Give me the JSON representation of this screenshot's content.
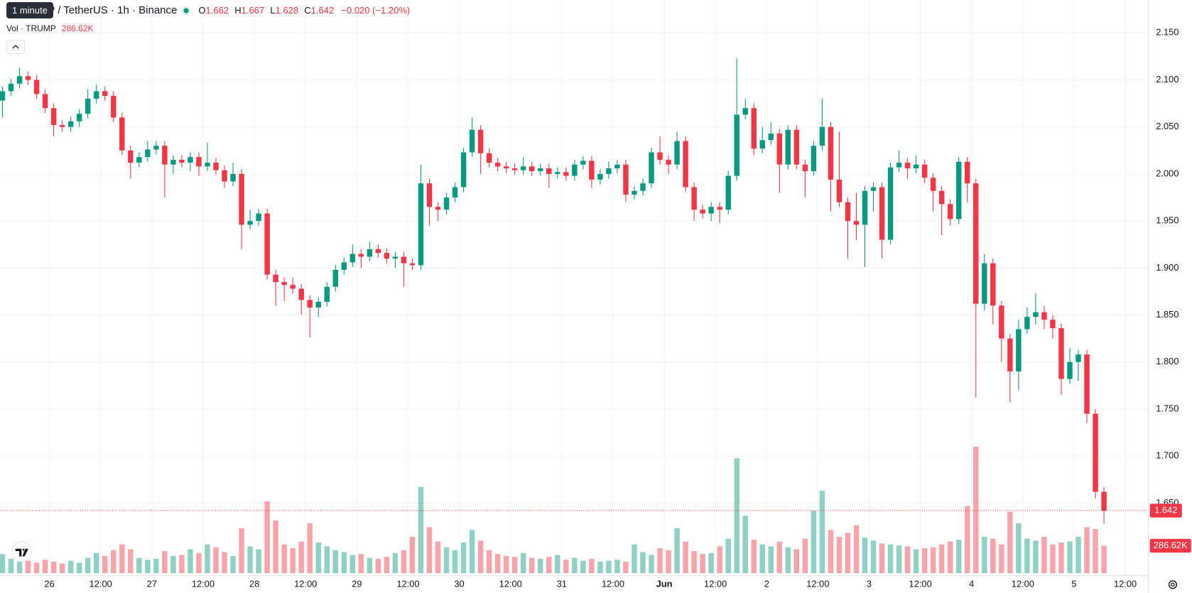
{
  "chart_data": {
    "type": "candlestick",
    "title": "TRUMP / TetherUS · 1h · Binance",
    "tooltip": "1 minute",
    "ohlc_keys": [
      "O",
      "H",
      "L",
      "C"
    ],
    "change": "−0.020 (−1.20%)",
    "volume_title": "Vol · TRUMP",
    "volume_label": "286.62K",
    "up_color": "#089981",
    "down_color": "#f23645",
    "grid": true,
    "open": [
      2.078,
      2.088,
      2.096,
      2.104,
      2.1,
      2.085,
      2.07,
      2.052,
      2.05,
      2.056,
      2.064,
      2.08,
      2.088,
      2.083,
      2.06,
      2.025,
      2.012,
      2.018,
      2.026,
      2.03,
      2.01,
      2.015,
      2.012,
      2.018,
      2.008,
      2.012,
      2.004,
      1.992,
      2.0,
      1.946,
      1.95,
      1.958,
      1.893,
      1.885,
      1.882,
      1.878,
      1.866,
      1.858,
      1.864,
      1.88,
      1.898,
      1.906,
      1.915,
      1.912,
      1.92,
      1.916,
      1.91,
      1.912,
      1.905,
      1.903,
      1.99,
      1.965,
      1.962,
      1.975,
      1.986,
      2.023,
      2.047,
      2.022,
      2.012,
      2.008,
      2.006,
      2.004,
      2.008,
      2.003,
      2.006,
      2.0,
      2.002,
      1.998,
      2.01,
      2.014,
      1.994,
      2.0,
      2.006,
      2.01,
      1.978,
      1.982,
      1.99,
      2.023,
      2.015,
      2.01,
      2.035,
      1.986,
      1.962,
      1.958,
      1.965,
      1.962,
      1.998,
      2.063,
      2.07,
      2.027,
      2.036,
      2.043,
      2.01,
      2.047,
      2.01,
      2.003,
      2.03,
      2.05,
      1.994,
      1.97,
      1.95,
      1.946,
      1.982,
      1.986,
      1.93,
      2.007,
      2.012,
      2.006,
      2.01,
      1.996,
      1.982,
      1.968,
      1.952,
      2.013,
      1.99,
      1.862,
      1.905,
      1.86,
      1.825,
      1.79,
      1.835,
      1.848,
      1.853,
      1.845,
      1.836,
      1.782,
      1.8,
      1.808,
      1.745,
      1.662
    ],
    "high": [
      2.093,
      2.101,
      2.113,
      2.109,
      2.105,
      2.09,
      2.075,
      2.057,
      2.061,
      2.069,
      2.09,
      2.095,
      2.093,
      2.088,
      2.065,
      2.03,
      2.023,
      2.035,
      2.035,
      2.035,
      2.02,
      2.02,
      2.023,
      2.023,
      2.033,
      2.017,
      2.009,
      2.012,
      2.005,
      1.962,
      1.963,
      1.963,
      1.898,
      1.89,
      1.89,
      1.883,
      1.871,
      1.869,
      1.885,
      1.903,
      1.911,
      1.925,
      1.92,
      1.928,
      1.925,
      1.921,
      1.917,
      1.917,
      1.91,
      2.01,
      1.995,
      1.97,
      1.98,
      1.991,
      2.028,
      2.06,
      2.052,
      2.027,
      2.017,
      2.013,
      2.011,
      2.018,
      2.013,
      2.011,
      2.011,
      2.007,
      2.007,
      2.015,
      2.019,
      2.019,
      2.005,
      2.013,
      2.015,
      2.015,
      1.987,
      1.995,
      2.028,
      2.04,
      2.02,
      2.045,
      2.04,
      1.991,
      1.967,
      1.97,
      1.97,
      2.003,
      2.123,
      2.08,
      2.075,
      2.05,
      2.055,
      2.048,
      2.052,
      2.052,
      2.015,
      2.035,
      2.08,
      2.055,
      2.045,
      1.975,
      1.98,
      1.987,
      1.991,
      1.991,
      2.012,
      2.025,
      2.017,
      2.02,
      2.015,
      2.001,
      1.987,
      1.973,
      2.018,
      2.018,
      1.995,
      1.915,
      1.91,
      1.865,
      1.83,
      1.845,
      1.858,
      1.873,
      1.86,
      1.85,
      1.841,
      1.815,
      1.813,
      1.813,
      1.75,
      1.667
    ],
    "low": [
      2.06,
      2.083,
      2.091,
      2.095,
      2.08,
      2.065,
      2.04,
      2.045,
      2.045,
      2.05,
      2.059,
      2.075,
      2.078,
      2.055,
      2.02,
      1.995,
      2.007,
      2.013,
      2.021,
      1.975,
      2.0,
      2.007,
      2.003,
      1.998,
      2.003,
      1.999,
      1.985,
      1.987,
      1.92,
      1.941,
      1.945,
      1.888,
      1.86,
      1.865,
      1.873,
      1.85,
      1.826,
      1.848,
      1.859,
      1.875,
      1.893,
      1.901,
      1.9,
      1.907,
      1.911,
      1.905,
      1.9,
      1.88,
      1.898,
      1.898,
      1.945,
      1.95,
      1.957,
      1.97,
      1.981,
      2.018,
      2.0,
      2.007,
      2.003,
      2.001,
      1.999,
      1.999,
      1.998,
      1.998,
      1.985,
      1.995,
      1.993,
      1.993,
      2.005,
      1.985,
      1.989,
      1.995,
      2.001,
      1.97,
      1.973,
      1.977,
      1.985,
      2.01,
      2.0,
      2.005,
      1.981,
      1.95,
      1.953,
      1.95,
      1.948,
      1.957,
      1.993,
      2.058,
      2.02,
      2.022,
      2.031,
      1.98,
      2.005,
      2.005,
      1.975,
      1.998,
      2.025,
      1.96,
      1.965,
      1.91,
      1.93,
      1.901,
      1.96,
      1.91,
      1.925,
      2.002,
      1.995,
      2.001,
      1.99,
      1.96,
      1.935,
      1.945,
      1.947,
      1.97,
      1.762,
      1.855,
      1.84,
      1.8,
      1.757,
      1.77,
      1.83,
      1.84,
      1.835,
      1.825,
      1.765,
      1.777,
      1.78,
      1.735,
      1.655,
      1.628
    ],
    "close": [
      2.088,
      2.096,
      2.104,
      2.1,
      2.085,
      2.07,
      2.052,
      2.05,
      2.056,
      2.064,
      2.08,
      2.088,
      2.083,
      2.06,
      2.025,
      2.012,
      2.018,
      2.026,
      2.03,
      2.01,
      2.015,
      2.012,
      2.018,
      2.008,
      2.012,
      2.004,
      1.992,
      2.0,
      1.946,
      1.95,
      1.958,
      1.893,
      1.885,
      1.882,
      1.878,
      1.866,
      1.858,
      1.864,
      1.88,
      1.898,
      1.906,
      1.915,
      1.912,
      1.92,
      1.916,
      1.91,
      1.912,
      1.905,
      1.903,
      1.99,
      1.965,
      1.962,
      1.975,
      1.986,
      2.023,
      2.047,
      2.022,
      2.012,
      2.008,
      2.006,
      2.004,
      2.008,
      2.003,
      2.006,
      2.0,
      2.002,
      1.998,
      2.01,
      2.014,
      1.994,
      2.0,
      2.006,
      2.01,
      1.978,
      1.982,
      1.99,
      2.023,
      2.015,
      2.01,
      2.035,
      1.986,
      1.962,
      1.958,
      1.965,
      1.962,
      1.998,
      2.063,
      2.07,
      2.027,
      2.036,
      2.043,
      2.01,
      2.047,
      2.01,
      2.003,
      2.03,
      2.05,
      1.994,
      1.97,
      1.95,
      1.946,
      1.982,
      1.986,
      1.93,
      2.007,
      2.012,
      2.006,
      2.01,
      1.996,
      1.982,
      1.968,
      1.952,
      2.013,
      1.99,
      1.862,
      1.905,
      1.86,
      1.825,
      1.79,
      1.835,
      1.848,
      1.853,
      1.845,
      1.836,
      1.782,
      1.8,
      1.808,
      1.745,
      1.662,
      1.642
    ],
    "volume": [
      200000,
      150000,
      120000,
      130000,
      110000,
      140000,
      120000,
      100000,
      130000,
      110000,
      160000,
      210000,
      180000,
      240000,
      300000,
      250000,
      160000,
      140000,
      150000,
      230000,
      180000,
      190000,
      250000,
      210000,
      300000,
      270000,
      220000,
      180000,
      470000,
      280000,
      250000,
      750000,
      550000,
      300000,
      260000,
      330000,
      520000,
      320000,
      280000,
      240000,
      220000,
      190000,
      200000,
      160000,
      150000,
      170000,
      210000,
      240000,
      380000,
      900000,
      480000,
      330000,
      270000,
      240000,
      320000,
      450000,
      340000,
      240000,
      200000,
      180000,
      170000,
      210000,
      160000,
      150000,
      170000,
      190000,
      140000,
      160000,
      130000,
      150000,
      120000,
      130000,
      140000,
      120000,
      300000,
      220000,
      190000,
      260000,
      240000,
      470000,
      330000,
      230000,
      200000,
      210000,
      280000,
      360000,
      1200000,
      600000,
      350000,
      300000,
      280000,
      330000,
      270000,
      250000,
      360000,
      650000,
      860000,
      450000,
      380000,
      420000,
      500000,
      370000,
      340000,
      310000,
      300000,
      290000,
      280000,
      250000,
      260000,
      270000,
      300000,
      330000,
      350000,
      700000,
      1320000,
      380000,
      360000,
      300000,
      640000,
      520000,
      360000,
      340000,
      380000,
      300000,
      320000,
      330000,
      380000,
      480000,
      460000,
      286620
    ],
    "xlim": [
      -0.27,
      134.2
    ],
    "xticks": [
      {
        "value": 5.5,
        "label": "26"
      },
      {
        "value": 11.5,
        "label": "12:00"
      },
      {
        "value": 17.5,
        "label": "27"
      },
      {
        "value": 23.5,
        "label": "12:00"
      },
      {
        "value": 29.5,
        "label": "28"
      },
      {
        "value": 35.5,
        "label": "12:00"
      },
      {
        "value": 41.5,
        "label": "29"
      },
      {
        "value": 47.5,
        "label": "12:00"
      },
      {
        "value": 53.5,
        "label": "30"
      },
      {
        "value": 59.5,
        "label": "12:00"
      },
      {
        "value": 65.5,
        "label": "31"
      },
      {
        "value": 71.5,
        "label": "12:00"
      },
      {
        "value": 77.5,
        "label": "Jun"
      },
      {
        "value": 83.5,
        "label": "12:00"
      },
      {
        "value": 89.5,
        "label": "2"
      },
      {
        "value": 95.5,
        "label": "12:00"
      },
      {
        "value": 101.5,
        "label": "3"
      },
      {
        "value": 107.5,
        "label": "12:00"
      },
      {
        "value": 113.5,
        "label": "4"
      },
      {
        "value": 119.5,
        "label": "12:00"
      },
      {
        "value": 125.5,
        "label": "5"
      },
      {
        "value": 131.5,
        "label": "12:00"
      }
    ],
    "ylim": [
      1.573,
      2.185
    ],
    "yticks": [
      {
        "value": 2.15,
        "label": "2.150"
      },
      {
        "value": 2.1,
        "label": "2.100"
      },
      {
        "value": 2.05,
        "label": "2.050"
      },
      {
        "value": 2.0,
        "label": "2.000"
      },
      {
        "value": 1.95,
        "label": "1.950"
      },
      {
        "value": 1.9,
        "label": "1.900"
      },
      {
        "value": 1.85,
        "label": "1.850"
      },
      {
        "value": 1.8,
        "label": "1.800"
      },
      {
        "value": 1.75,
        "label": "1.750"
      },
      {
        "value": 1.7,
        "label": "1.700"
      },
      {
        "value": 1.65,
        "label": "1.650"
      }
    ],
    "vol_ylim": [
      0,
      1400000
    ]
  }
}
